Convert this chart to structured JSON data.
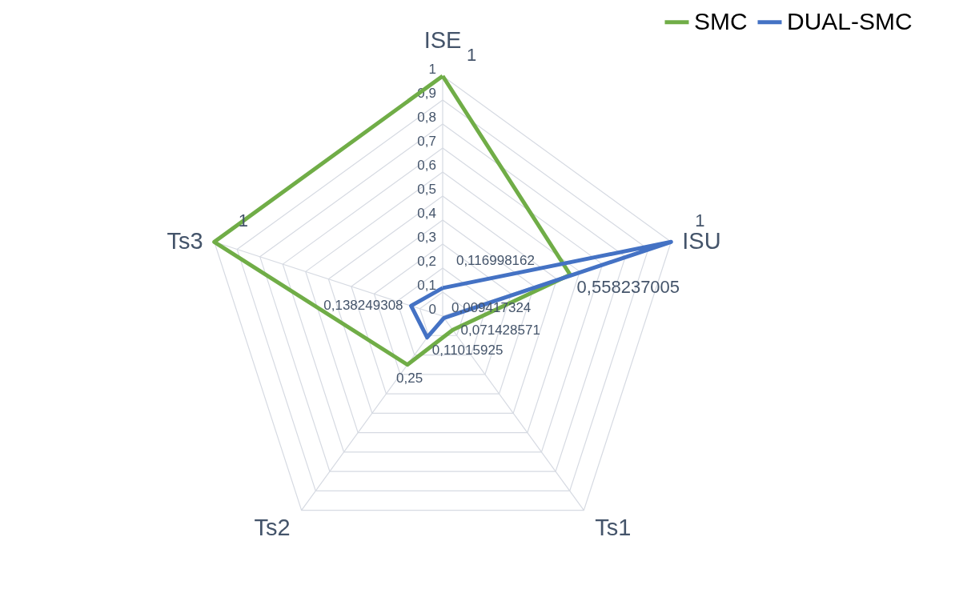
{
  "chart_data": {
    "type": "radar",
    "categories": [
      "ISE",
      "ISU",
      "Ts1",
      "Ts2",
      "Ts3"
    ],
    "series": [
      {
        "name": "SMC",
        "color": "#70ad47",
        "values": [
          1,
          0.558237005,
          0.071428571,
          0.25,
          1
        ],
        "value_labels": [
          "1",
          "0,558237005",
          "0,071428571",
          "0,25",
          "1"
        ]
      },
      {
        "name": "DUAL-SMC",
        "color": "#4472c4",
        "values": [
          0.116998162,
          1,
          0.009417324,
          0.11015925,
          0.138249308
        ],
        "value_labels": [
          "0,116998162",
          "1",
          "0,009417324",
          "0,11015925",
          "0,138249308"
        ]
      }
    ],
    "ylim": [
      0,
      1
    ],
    "yticks": [
      0,
      {
        "value": 0.1,
        "label": "0,1"
      },
      {
        "value": 0.2,
        "label": "0,2"
      },
      {
        "value": 0.3,
        "label": "0,3"
      },
      {
        "value": 0.4,
        "label": "0,4"
      },
      {
        "value": 0.5,
        "label": "0,5"
      },
      {
        "value": 0.6,
        "label": "0,6"
      },
      {
        "value": 0.7,
        "label": "0,7"
      },
      {
        "value": 0.8,
        "label": "0,8"
      },
      {
        "value": 0.9,
        "label": "0,9"
      },
      1
    ],
    "grid": true,
    "legend": "top right",
    "line_style": "solid",
    "marker": "none"
  }
}
